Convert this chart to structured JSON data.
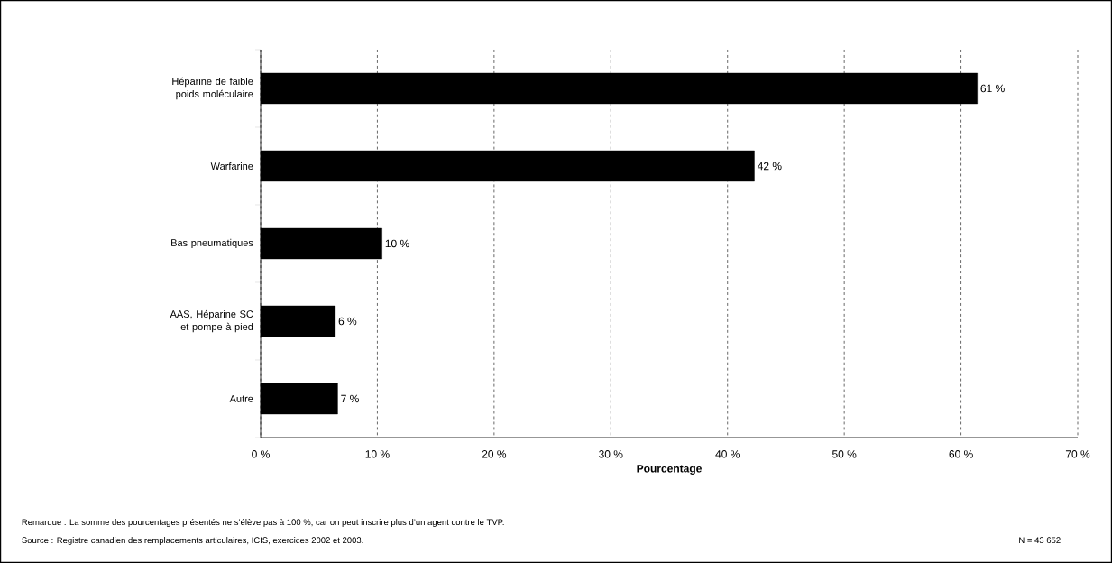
{
  "chart_data": {
    "type": "bar",
    "orientation": "horizontal",
    "xlabel": "Pourcentage",
    "categories": [
      "Héparine de faible poids moléculaire",
      "Warfarine",
      "Bas pneumatiques",
      "AAS, Héparine SC et pompe à pied",
      "Autre"
    ],
    "values": [
      61.4,
      42.3,
      10.4,
      6.4,
      6.6
    ],
    "value_labels": [
      "61 %",
      "42 %",
      "10 %",
      "6 %",
      "7 %"
    ],
    "color": "#000000",
    "xlim": [
      0,
      70
    ],
    "xticks": [
      {
        "value": 0,
        "label": "0 %"
      },
      {
        "value": 10,
        "label": "10 %"
      },
      {
        "value": 20,
        "label": "20 %"
      },
      {
        "value": 30,
        "label": "30 %"
      },
      {
        "value": 40,
        "label": "40 %"
      },
      {
        "value": 50,
        "label": "50 %"
      },
      {
        "value": 60,
        "label": "60 %"
      },
      {
        "value": 70,
        "label": "70 %"
      }
    ],
    "grid": "x",
    "annotations": [
      "Remarque : La somme des pourcentages présentés ne s’élève pas à 100 %, car on peut inscrire plus d’un agent contre le TVP.",
      "Source : Registre canadien des remplacements articulaires, ICIS, exercices 2002 et 2003.",
      "N = 43 652"
    ]
  }
}
